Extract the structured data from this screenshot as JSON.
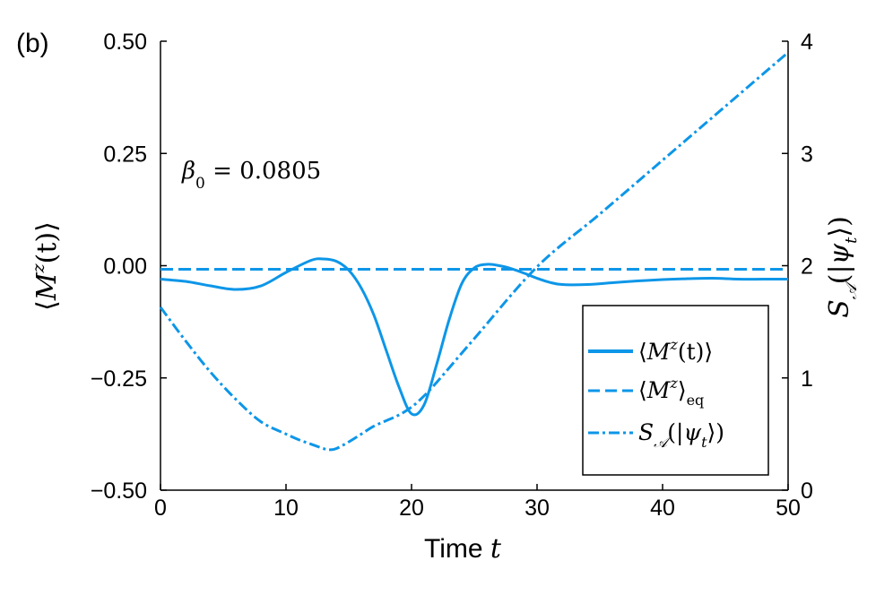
{
  "chart_data": {
    "type": "line",
    "panel_label": "(b)",
    "annotation": "β₀ = 0.0805",
    "annotation_parts": {
      "symbol": "β",
      "subscript": "0",
      "equals": " = ",
      "value": "0.0805"
    },
    "xlabel": "Time t",
    "xlabel_parts": {
      "text": "Time ",
      "symbol": "t"
    },
    "ylabel_left": "⟨M^z(t)⟩",
    "ylabel_left_parts": {
      "open": "⟨",
      "symbol": "M",
      "sup": "z",
      "rest": "(t)",
      "close": "⟩"
    },
    "ylabel_right": "S_A(|ψ_t⟩)",
    "ylabel_right_parts": {
      "symbol": "S",
      "sub": "𝒜",
      "open": "(|",
      "psi": "ψ",
      "psi_sub": "t",
      "close": "⟩)"
    },
    "xlim": [
      0,
      50
    ],
    "ylim_left": [
      -0.5,
      0.5
    ],
    "ylim_right": [
      0,
      4
    ],
    "x_ticks": [
      "0",
      "10",
      "20",
      "30",
      "40",
      "50"
    ],
    "x_tick_values": [
      0,
      10,
      20,
      30,
      40,
      50
    ],
    "y_left_ticks": [
      "0.50",
      "0.25",
      "0.00",
      "−0.25",
      "−0.50"
    ],
    "y_left_tick_values": [
      0.5,
      0.25,
      0.0,
      -0.25,
      -0.5
    ],
    "y_right_ticks": [
      "4",
      "3",
      "2",
      "1",
      "0"
    ],
    "y_right_tick_values": [
      4,
      3,
      2,
      1,
      0
    ],
    "color": "#0d96e8",
    "legend_position": "lower-right",
    "legend": [
      {
        "label": "⟨M^z(t)⟩",
        "style": "solid",
        "parts": {
          "open": "⟨",
          "symbol": "M",
          "sup": "z",
          "rest": "(t)",
          "close": "⟩"
        }
      },
      {
        "label": "⟨M^z⟩_eq",
        "style": "dashed",
        "parts": {
          "open": "⟨",
          "symbol": "M",
          "sup": "z",
          "close": "⟩",
          "sub": "eq"
        }
      },
      {
        "label": "S_A(|ψ_t⟩)",
        "style": "dashdot",
        "parts": {
          "symbol": "S",
          "sub": "𝒜",
          "open": "(|",
          "psi": "ψ",
          "psi_sub": "t",
          "close": "⟩)"
        }
      }
    ],
    "series": [
      {
        "name": "⟨M^z(t)⟩",
        "axis": "left",
        "style": "solid",
        "x": [
          0,
          2,
          4,
          6,
          8,
          10,
          12,
          13,
          14,
          15,
          16,
          17,
          18,
          19,
          20,
          21,
          22,
          23,
          24,
          25,
          26,
          27,
          28,
          29,
          30,
          31,
          32,
          34,
          36,
          38,
          40,
          42,
          44,
          46,
          48,
          50
        ],
        "y": [
          -0.03,
          -0.035,
          -0.045,
          -0.053,
          -0.045,
          -0.015,
          0.012,
          0.015,
          0.01,
          -0.01,
          -0.05,
          -0.11,
          -0.19,
          -0.27,
          -0.33,
          -0.31,
          -0.22,
          -0.12,
          -0.04,
          -0.005,
          0.003,
          0.0,
          -0.007,
          -0.017,
          -0.028,
          -0.037,
          -0.042,
          -0.042,
          -0.038,
          -0.034,
          -0.031,
          -0.029,
          -0.028,
          -0.03,
          -0.03,
          -0.03
        ]
      },
      {
        "name": "⟨M^z⟩_eq",
        "axis": "left",
        "style": "dashed",
        "x": [
          0,
          50
        ],
        "y": [
          -0.008,
          -0.008
        ]
      },
      {
        "name": "S_A(|ψ_t⟩)",
        "axis": "right",
        "style": "dashdot",
        "x": [
          0,
          2,
          4,
          6,
          8,
          10,
          11,
          12,
          13,
          13.5,
          14,
          15,
          16,
          17,
          18,
          19,
          20,
          21,
          22,
          25,
          30,
          35,
          40,
          45,
          50
        ],
        "y": [
          1.63,
          1.33,
          1.05,
          0.81,
          0.61,
          0.5,
          0.45,
          0.41,
          0.37,
          0.36,
          0.37,
          0.43,
          0.5,
          0.57,
          0.62,
          0.67,
          0.74,
          0.84,
          0.96,
          1.35,
          1.99,
          2.46,
          2.94,
          3.42,
          3.9
        ]
      }
    ]
  }
}
